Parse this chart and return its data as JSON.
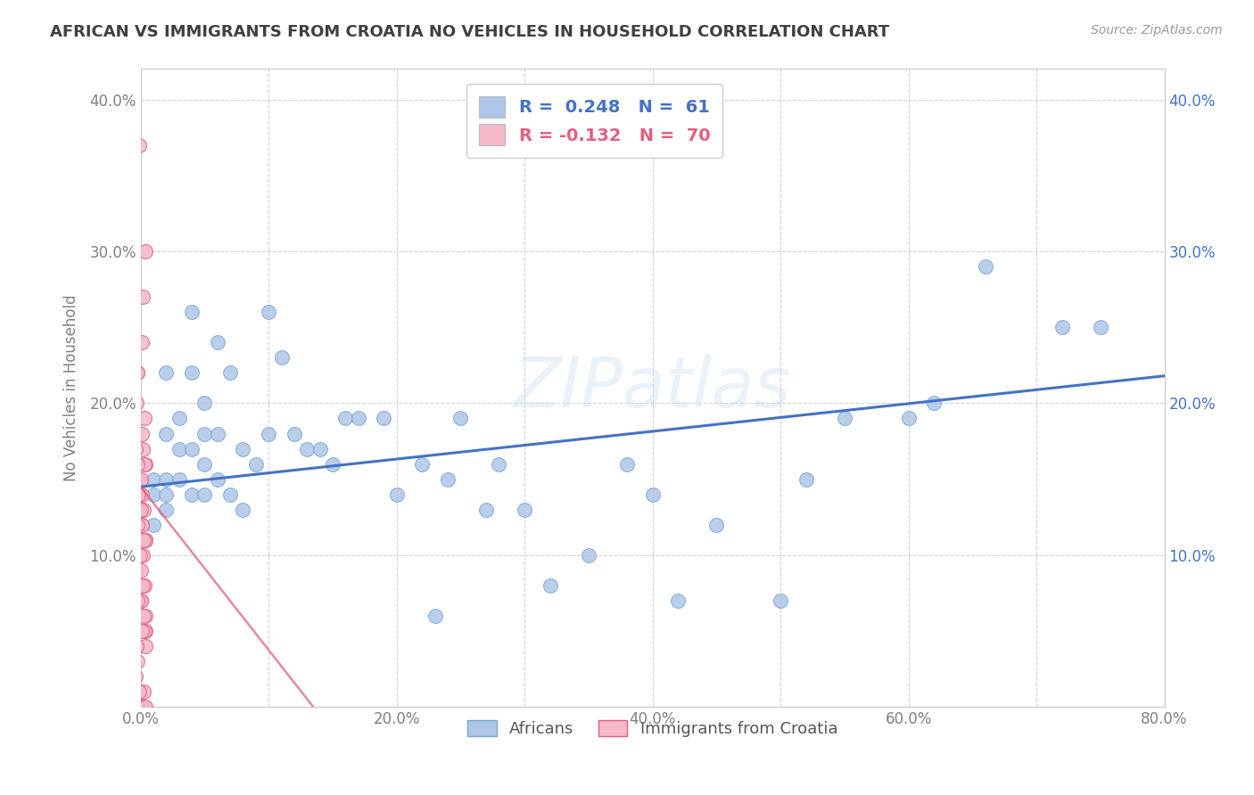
{
  "title": "AFRICAN VS IMMIGRANTS FROM CROATIA NO VEHICLES IN HOUSEHOLD CORRELATION CHART",
  "source": "Source: ZipAtlas.com",
  "ylabel": "No Vehicles in Household",
  "watermark": "ZIPatlas",
  "xlim": [
    0.0,
    0.8
  ],
  "ylim": [
    0.0,
    0.42
  ],
  "xticks": [
    0.0,
    0.1,
    0.2,
    0.3,
    0.4,
    0.5,
    0.6,
    0.7,
    0.8
  ],
  "xticklabels": [
    "0.0%",
    "",
    "20.0%",
    "",
    "40.0%",
    "",
    "60.0%",
    "",
    "80.0%"
  ],
  "yticks": [
    0.0,
    0.1,
    0.2,
    0.3,
    0.4
  ],
  "yticklabels": [
    "",
    "10.0%",
    "20.0%",
    "30.0%",
    "40.0%"
  ],
  "legend_entries": [
    {
      "label": "R =  0.248   N =  61",
      "color": "#aec6e8",
      "text_color": "#4472c4"
    },
    {
      "label": "R = -0.132   N =  70",
      "color": "#f4b8c8",
      "text_color": "#e06080"
    }
  ],
  "series1_color": "#aec6e8",
  "series1_edge": "#7aaad4",
  "series2_color": "#f4b8c8",
  "series2_edge": "#e06080",
  "trendline1_color": "#4472c4",
  "trendline2_color": "#e06080",
  "trendline1_x": [
    0.0,
    0.8
  ],
  "trendline1_y": [
    0.145,
    0.218
  ],
  "trendline2_x": [
    0.0,
    0.135
  ],
  "trendline2_y": [
    0.145,
    0.0
  ],
  "africans_x": [
    0.0,
    0.0,
    0.01,
    0.01,
    0.01,
    0.02,
    0.02,
    0.02,
    0.02,
    0.02,
    0.03,
    0.03,
    0.03,
    0.04,
    0.04,
    0.04,
    0.04,
    0.05,
    0.05,
    0.05,
    0.05,
    0.06,
    0.06,
    0.06,
    0.07,
    0.07,
    0.08,
    0.08,
    0.09,
    0.1,
    0.1,
    0.11,
    0.12,
    0.13,
    0.14,
    0.15,
    0.16,
    0.17,
    0.19,
    0.2,
    0.22,
    0.23,
    0.24,
    0.25,
    0.27,
    0.28,
    0.3,
    0.32,
    0.35,
    0.38,
    0.4,
    0.42,
    0.45,
    0.5,
    0.52,
    0.55,
    0.6,
    0.62,
    0.66,
    0.72,
    0.75
  ],
  "africans_y": [
    0.14,
    0.12,
    0.15,
    0.14,
    0.12,
    0.22,
    0.18,
    0.15,
    0.14,
    0.13,
    0.19,
    0.17,
    0.15,
    0.26,
    0.22,
    0.17,
    0.14,
    0.2,
    0.18,
    0.16,
    0.14,
    0.24,
    0.18,
    0.15,
    0.22,
    0.14,
    0.17,
    0.13,
    0.16,
    0.26,
    0.18,
    0.23,
    0.18,
    0.17,
    0.17,
    0.16,
    0.19,
    0.19,
    0.19,
    0.14,
    0.16,
    0.06,
    0.15,
    0.19,
    0.13,
    0.16,
    0.13,
    0.08,
    0.1,
    0.16,
    0.14,
    0.07,
    0.12,
    0.07,
    0.15,
    0.19,
    0.19,
    0.2,
    0.29,
    0.25,
    0.25
  ],
  "croatia_x_true": [
    0.0,
    0.0,
    0.0,
    0.0,
    0.0,
    0.0,
    0.0,
    0.0,
    0.0,
    0.0,
    0.0,
    0.0,
    0.0,
    0.0,
    0.0,
    0.0,
    0.0,
    0.0,
    0.0,
    0.0,
    0.0,
    0.0,
    0.0,
    0.0,
    0.0,
    0.0,
    0.0,
    0.0,
    0.0,
    0.0,
    0.0,
    0.0,
    0.0,
    0.0,
    0.0,
    0.0,
    0.0,
    0.0,
    0.0,
    0.0,
    0.0,
    0.0,
    0.0,
    0.0,
    0.0,
    0.0,
    0.0,
    0.0,
    0.0,
    0.0,
    0.0,
    0.0,
    0.0,
    0.0,
    0.0,
    0.0,
    0.0,
    0.0,
    0.0,
    0.0,
    0.0,
    0.0,
    0.0,
    0.0,
    0.0,
    0.0,
    0.0,
    0.0,
    0.0,
    0.0
  ],
  "croatia_y": [
    0.37,
    0.3,
    0.27,
    0.24,
    0.22,
    0.22,
    0.2,
    0.19,
    0.18,
    0.17,
    0.17,
    0.16,
    0.16,
    0.16,
    0.15,
    0.15,
    0.15,
    0.15,
    0.14,
    0.14,
    0.14,
    0.14,
    0.14,
    0.13,
    0.13,
    0.13,
    0.13,
    0.13,
    0.12,
    0.12,
    0.12,
    0.12,
    0.11,
    0.11,
    0.11,
    0.11,
    0.1,
    0.1,
    0.1,
    0.1,
    0.09,
    0.09,
    0.08,
    0.08,
    0.08,
    0.08,
    0.07,
    0.07,
    0.07,
    0.07,
    0.06,
    0.06,
    0.05,
    0.05,
    0.05,
    0.04,
    0.04,
    0.03,
    0.02,
    0.01,
    0.01,
    0.01,
    0.01,
    0.01,
    0.0,
    0.0,
    0.0,
    0.0,
    0.0,
    0.0
  ],
  "background_color": "#ffffff",
  "grid_color": "#c8c8c8",
  "title_color": "#404040",
  "axis_color": "#808080"
}
